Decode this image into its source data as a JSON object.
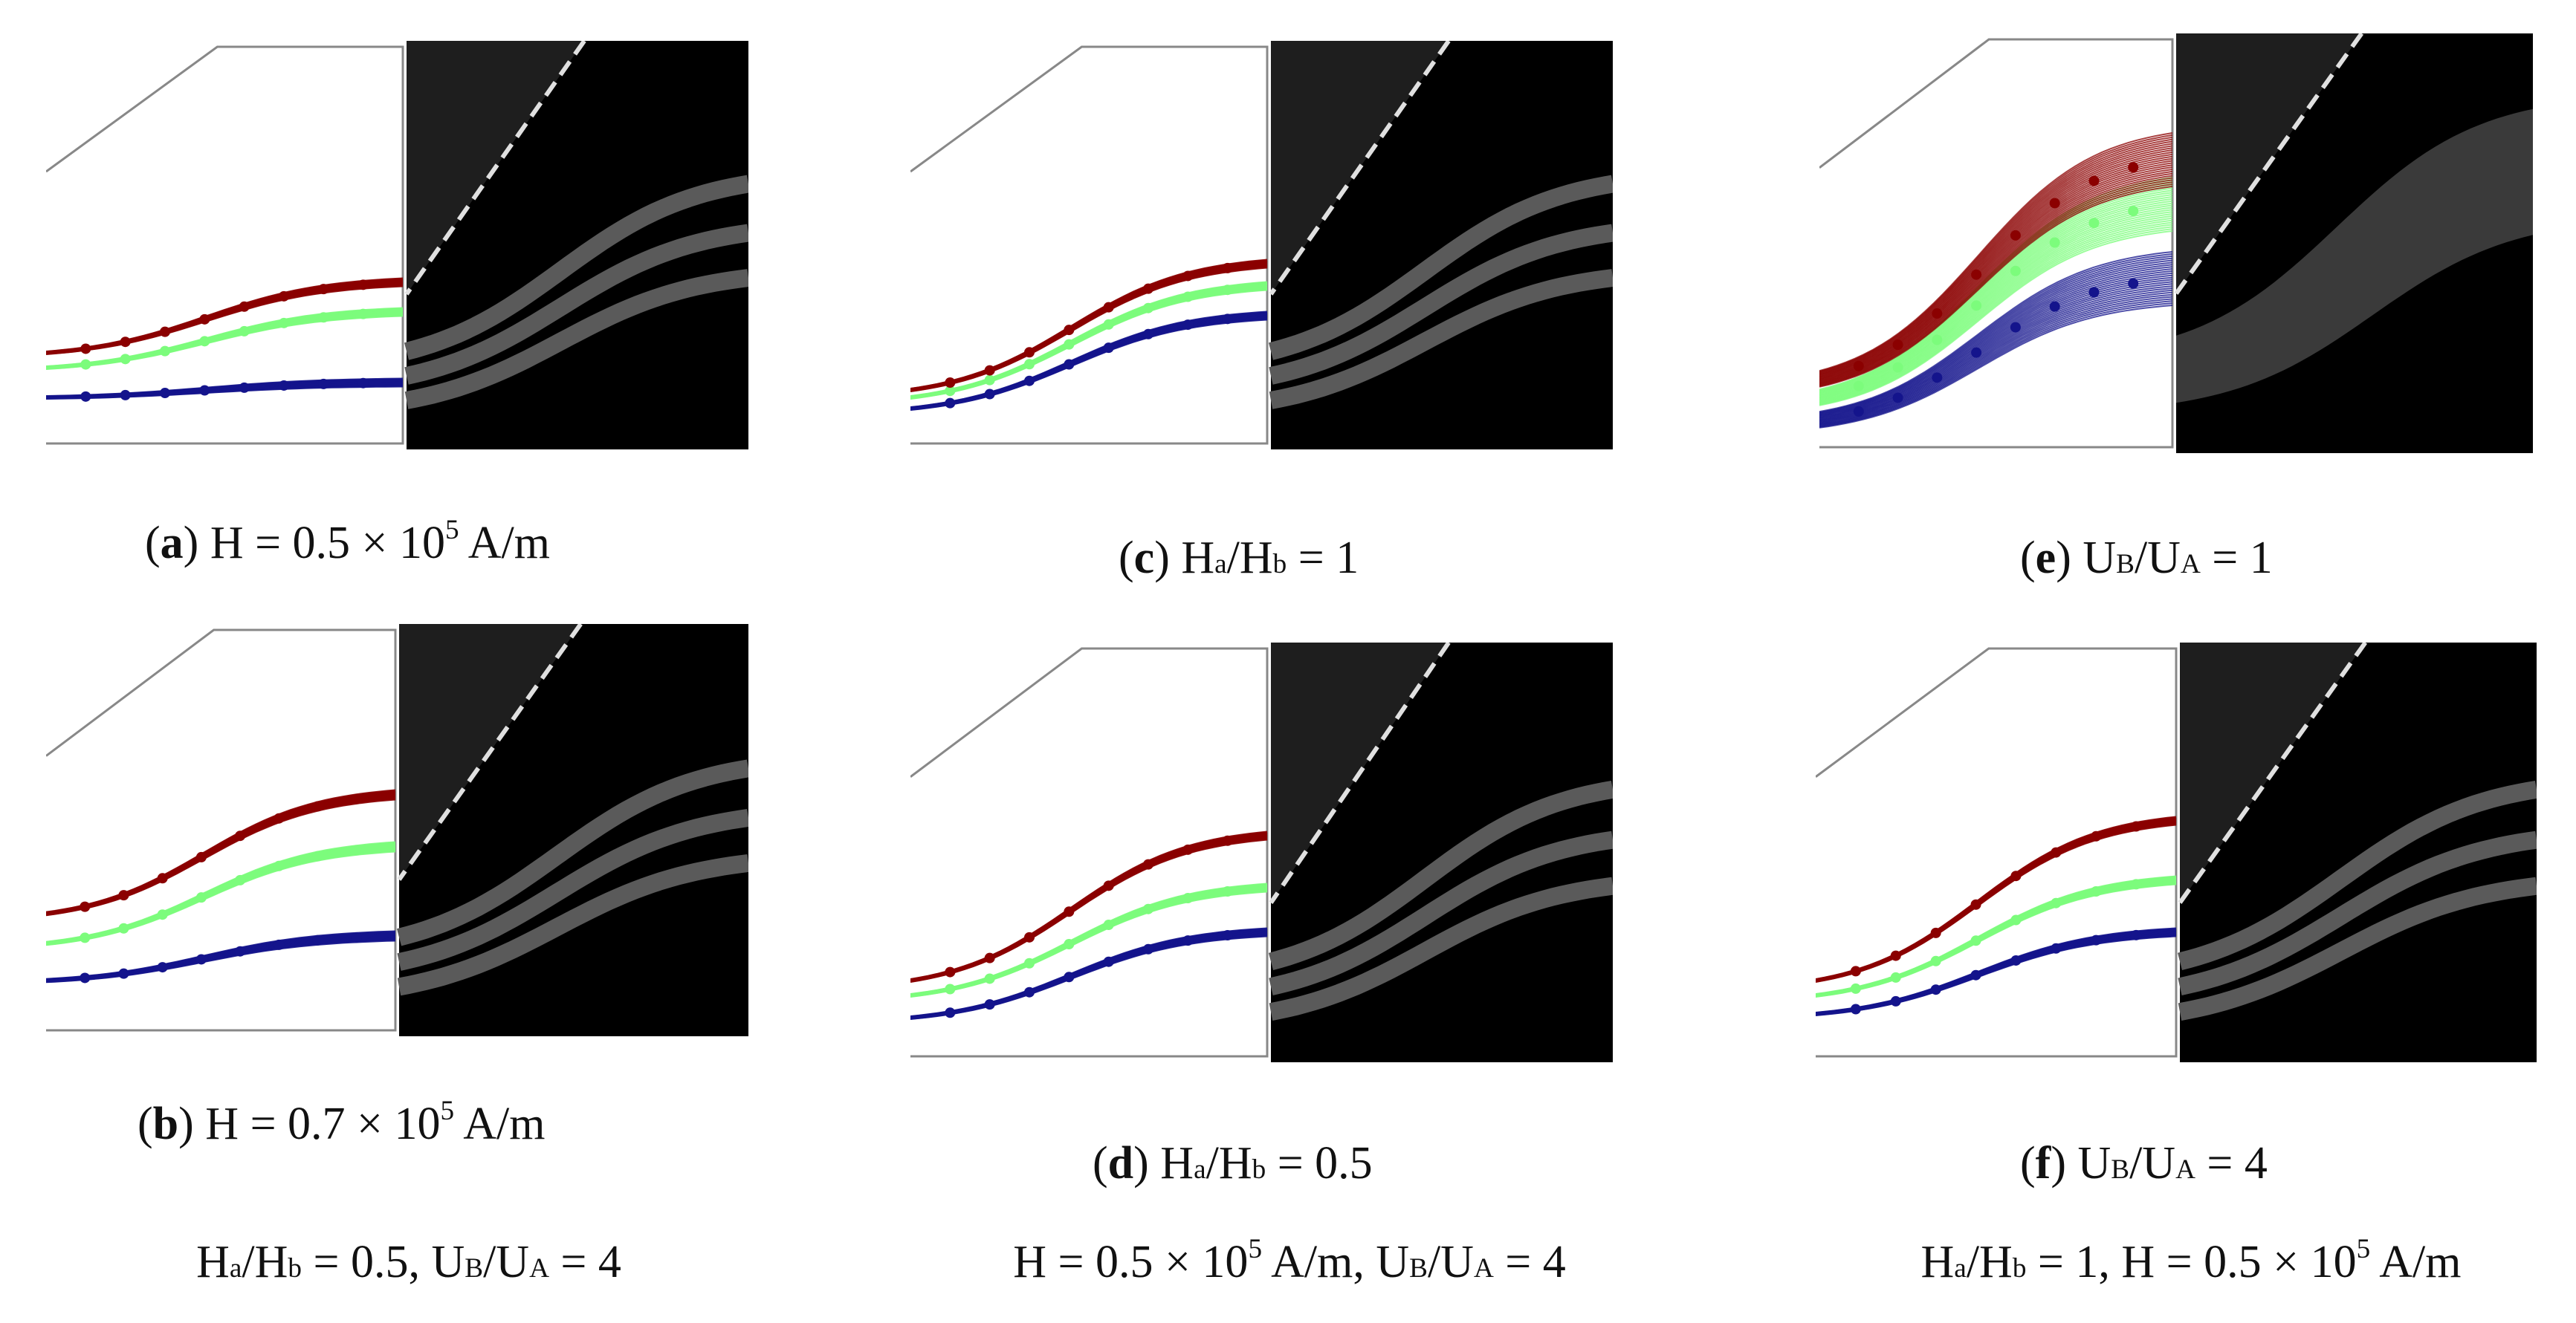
{
  "figure": {
    "panels": [
      {
        "letter": "a",
        "label": "H = 0.5 × 10",
        "sup": "5",
        "suffix": " A/m"
      },
      {
        "letter": "b",
        "label": "H = 0.7 × 10",
        "sup": "5",
        "suffix": " A/m"
      },
      {
        "letter": "c",
        "parts": [
          "H",
          "a",
          "/H",
          "b",
          " = 1"
        ]
      },
      {
        "letter": "d",
        "parts": [
          "H",
          "a",
          "/H",
          "b",
          " = 0.5"
        ]
      },
      {
        "letter": "e",
        "parts": [
          "U",
          "B",
          "/U",
          "A",
          " = 1"
        ]
      },
      {
        "letter": "f",
        "parts": [
          "U",
          "B",
          "/U",
          "A",
          " = 4"
        ]
      }
    ],
    "footnotes": [
      {
        "parts": [
          "H",
          "a",
          "/H",
          "b",
          " = 0.5, U",
          "B",
          "/U",
          "A",
          " = 4"
        ]
      },
      {
        "parts": [
          "H = 0.5 × 10",
          "5",
          " A/m, U",
          "B",
          "/U",
          "A",
          " = 4"
        ]
      },
      {
        "parts": [
          "H",
          "a",
          "/H",
          "b",
          " = 1, H = 0.5 × 10",
          "5",
          " A/m"
        ]
      }
    ],
    "colors": {
      "red": "#8b0000",
      "green": "#7cfc7c",
      "blue": "#14148c",
      "image_bg": "#000000",
      "image_upper": "#1e1e1e",
      "band": "#5a5a5a",
      "dashed": "#e0e0e0"
    }
  }
}
